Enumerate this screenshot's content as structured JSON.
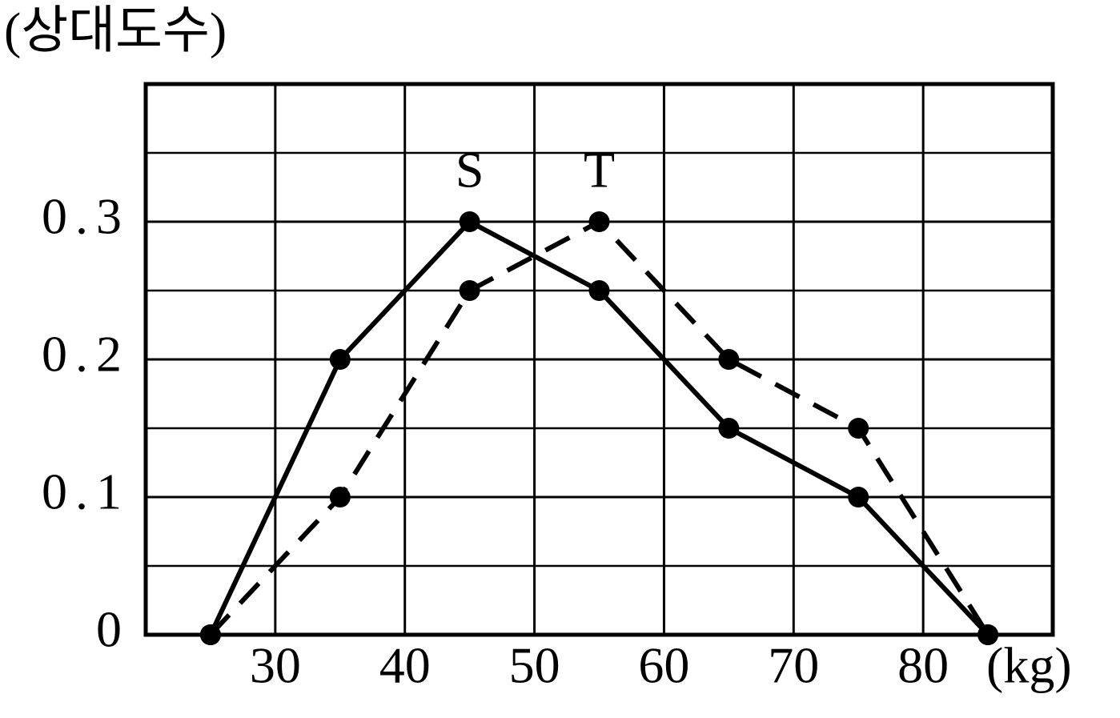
{
  "chart_data": {
    "type": "line",
    "y_label": "(상대도수)",
    "x_label": "(kg)",
    "x": [
      25,
      35,
      45,
      55,
      65,
      75,
      85
    ],
    "series": [
      {
        "name": "S",
        "color": "#000000",
        "line_style": "solid",
        "values": [
          0,
          0.2,
          0.3,
          0.25,
          0.15,
          0.1,
          0
        ]
      },
      {
        "name": "T",
        "color": "#000000",
        "line_style": "dashed",
        "values": [
          0,
          0.1,
          0.25,
          0.3,
          0.2,
          0.15,
          0
        ]
      }
    ],
    "xlim": [
      20,
      90
    ],
    "xticks": [
      30,
      40,
      50,
      60,
      70,
      80
    ],
    "ylim": [
      0,
      0.4
    ],
    "yticks": [
      0,
      0.1,
      0.2,
      0.3
    ],
    "y_minor_ticks": [
      0.05,
      0.15,
      0.25,
      0.35
    ],
    "grid": true
  }
}
